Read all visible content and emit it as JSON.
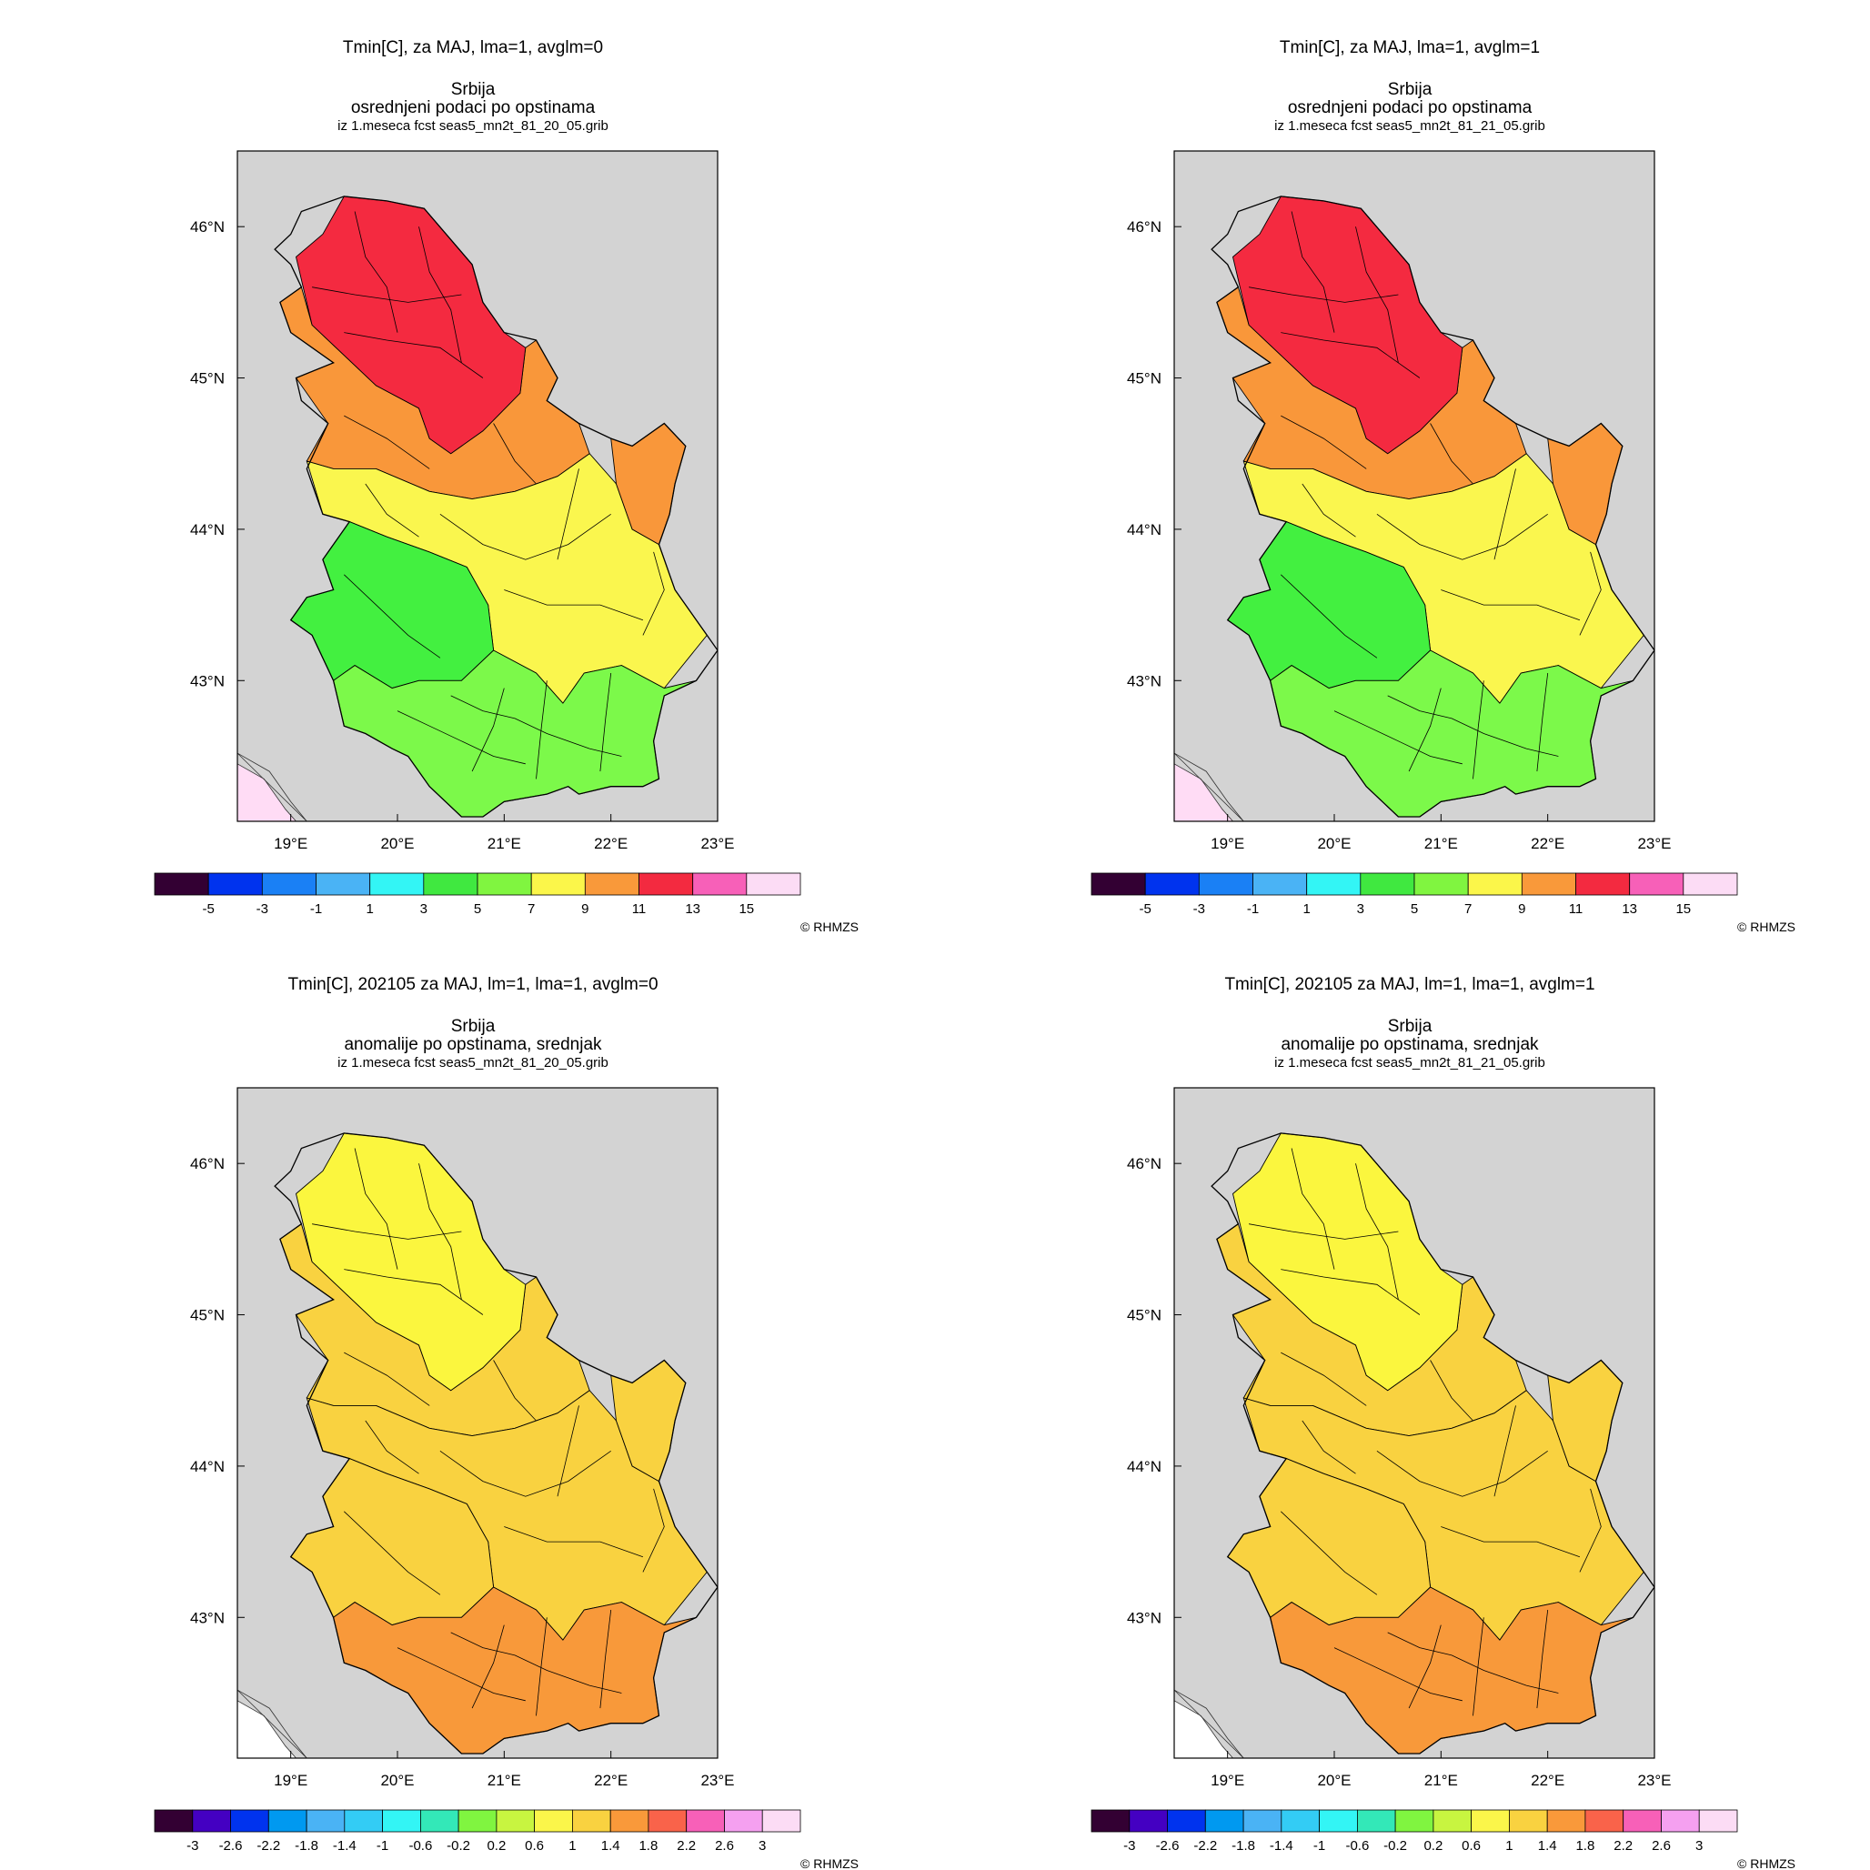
{
  "colors": {
    "sea": "#d3d3d3",
    "border": "#000000",
    "land_outside": "#ffffff",
    "region_pink": "#ffdcf5"
  },
  "panels": [
    {
      "title": "Tmin[C], za MAJ, lma=1, avglm=0",
      "subtitle1": "Srbija",
      "subtitle2": "osrednjeni podaci po opstinama",
      "subtitle3": "iz 1.meseca fcst seas5_mn2t_81_20_05.grib",
      "scale": "abs",
      "zones": {
        "north": "#f42a40",
        "central": "#f9973a",
        "middle": "#faf64e",
        "south": "#7cf94a",
        "southwest": "#43f040"
      },
      "copyright": "© RHMZS"
    },
    {
      "title": "Tmin[C], za MAJ, lma=1, avglm=1",
      "subtitle1": "Srbija",
      "subtitle2": "osrednjeni podaci po opstinama",
      "subtitle3": "iz 1.meseca fcst seas5_mn2t_81_21_05.grib",
      "scale": "abs",
      "zones": {
        "north": "#f42a40",
        "central": "#f9973a",
        "middle": "#faf64e",
        "south": "#7cf94a",
        "southwest": "#43f040"
      },
      "copyright": "© RHMZS"
    },
    {
      "title": "Tmin[C], 202105 za MAJ, lm=1, lma=1, avglm=0",
      "subtitle1": "Srbija",
      "subtitle2": "anomalije po opstinama, srednjak",
      "subtitle3": "iz 1.meseca fcst seas5_mn2t_81_20_05.grib",
      "scale": "anom",
      "zones": {
        "north": "#fbf63e",
        "central": "#f9d240",
        "middle": "#f9d240",
        "south": "#f8993a",
        "southwest": "#f9d240"
      },
      "copyright": "© RHMZS"
    },
    {
      "title": "Tmin[C], 202105 za MAJ, lm=1, lma=1, avglm=1",
      "subtitle1": "Srbija",
      "subtitle2": "anomalije po opstinama, srednjak",
      "subtitle3": "iz 1.meseca fcst seas5_mn2t_81_21_05.grib",
      "scale": "anom",
      "zones": {
        "north": "#fbf63e",
        "central": "#f9d240",
        "middle": "#f9d240",
        "south": "#f8993a",
        "southwest": "#f9d240"
      },
      "copyright": "© RHMZS"
    }
  ],
  "axes": {
    "lat_labels": [
      "46°N",
      "45°N",
      "44°N",
      "43°N"
    ],
    "lon_labels": [
      "19°E",
      "20°E",
      "21°E",
      "22°E",
      "23°E"
    ]
  },
  "colorbars": {
    "abs": {
      "colors": [
        "#330033",
        "#0033ee",
        "#1a80f5",
        "#4ab3f5",
        "#33f5f5",
        "#40e840",
        "#80f540",
        "#fbf64a",
        "#f9993a",
        "#f32a40",
        "#f760b8",
        "#fcdcf5"
      ],
      "labels": [
        "-5",
        "-3",
        "-1",
        "1",
        "3",
        "5",
        "7",
        "9",
        "11",
        "13",
        "15"
      ]
    },
    "anom": {
      "colors": [
        "#330033",
        "#4400c2",
        "#0033ee",
        "#0099f0",
        "#4ab3f5",
        "#33ccf5",
        "#33f5f5",
        "#33e8b8",
        "#80f540",
        "#c8f540",
        "#fbf64a",
        "#f9d240",
        "#f9993a",
        "#f9634a",
        "#f760b8",
        "#f5a0f0",
        "#fcdcf5"
      ],
      "labels": [
        "-3",
        "-2.6",
        "-2.2",
        "-1.8",
        "-1.4",
        "-1",
        "-0.6",
        "-0.2",
        "0.2",
        "0.6",
        "1",
        "1.4",
        "1.8",
        "2.2",
        "2.6",
        "3"
      ]
    }
  }
}
